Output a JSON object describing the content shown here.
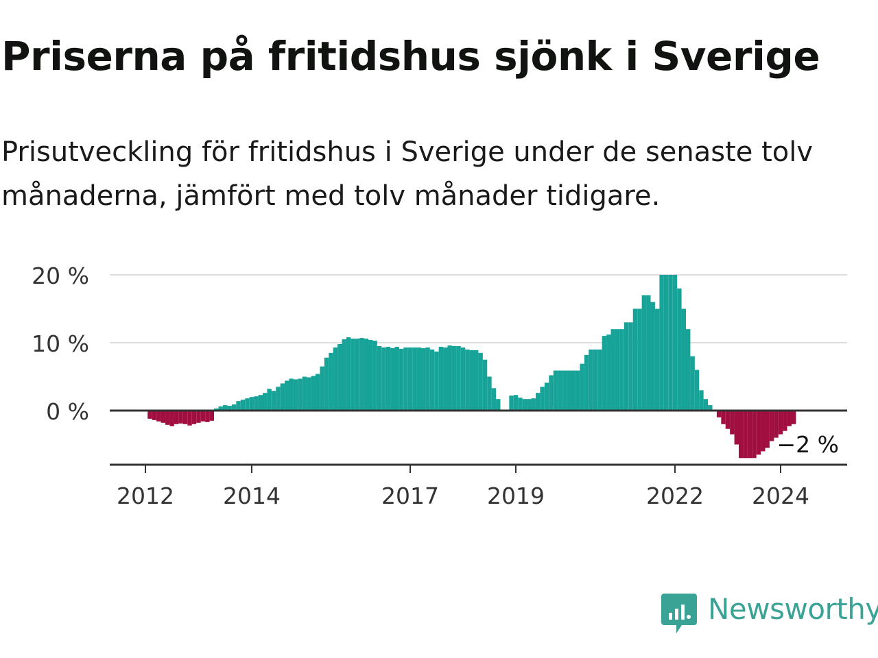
{
  "title": "Priserna på fritidshus sjönk i Sverige",
  "subtitle": "Prisutveckling för fritidshus i Sverige under de senaste tolv månaderna, jämfört med tolv månader tidigare.",
  "logo_text": "Newsworthy",
  "colors": {
    "positive": "#17a398",
    "negative": "#a10e40",
    "grid": "#dddddd",
    "axis": "#333333",
    "brand": "#3aa396"
  },
  "chart_data": {
    "type": "bar",
    "ylim": [
      -7,
      20
    ],
    "yticks": [
      0,
      10,
      20
    ],
    "ytick_labels": [
      "0 %",
      "10 %",
      "20 %"
    ],
    "xticks": [
      2012,
      2014,
      2017,
      2019,
      2022,
      2024
    ],
    "xtick_labels": [
      "2012",
      "2014",
      "2017",
      "2019",
      "2022",
      "2024"
    ],
    "x_start": "2012-01",
    "annotation": "−2 %",
    "grid": true,
    "values": [
      -1.2,
      -1.4,
      -1.6,
      -1.8,
      -2.1,
      -2.3,
      -2.0,
      -1.9,
      -2.0,
      -2.2,
      -2.0,
      -1.8,
      -1.6,
      -1.7,
      -1.5,
      0.3,
      0.6,
      0.8,
      0.7,
      0.9,
      1.4,
      1.6,
      1.8,
      2.0,
      2.1,
      2.3,
      2.6,
      3.2,
      2.9,
      3.5,
      4.0,
      4.4,
      4.7,
      4.6,
      4.7,
      5.0,
      4.9,
      5.1,
      5.4,
      6.5,
      7.8,
      8.5,
      9.3,
      9.8,
      10.5,
      10.8,
      10.6,
      10.6,
      10.7,
      10.6,
      10.4,
      10.3,
      9.5,
      9.3,
      9.4,
      9.2,
      9.4,
      9.1,
      9.3,
      9.3,
      9.3,
      9.3,
      9.2,
      9.3,
      9.0,
      8.7,
      9.4,
      9.3,
      9.6,
      9.5,
      9.5,
      9.3,
      9.0,
      8.9,
      8.9,
      8.5,
      7.5,
      5.0,
      3.3,
      1.7,
      null,
      null,
      2.2,
      2.3,
      1.9,
      1.7,
      1.7,
      1.8,
      2.6,
      3.5,
      4.1,
      5.2,
      5.9,
      5.9,
      5.9,
      5.9,
      5.9,
      5.9,
      6.9,
      8.2,
      9.0,
      9.0,
      9.0,
      11.0,
      11.2,
      12.0,
      12.0,
      12.0,
      13.0,
      13.0,
      15.0,
      15.0,
      17.0,
      17.0,
      16.0,
      15.0,
      20.0,
      20.0,
      20.0,
      20.0,
      18.0,
      15.0,
      12.0,
      8.0,
      6.0,
      3.0,
      1.7,
      0.8,
      null,
      -1.0,
      -2.0,
      -2.7,
      -3.5,
      -5.0,
      -7.0,
      -7.0,
      -7.0,
      -7.0,
      -6.5,
      -6.0,
      -5.5,
      -4.5,
      -4.0,
      -3.5,
      -3.0,
      -2.3,
      -2.0
    ]
  }
}
